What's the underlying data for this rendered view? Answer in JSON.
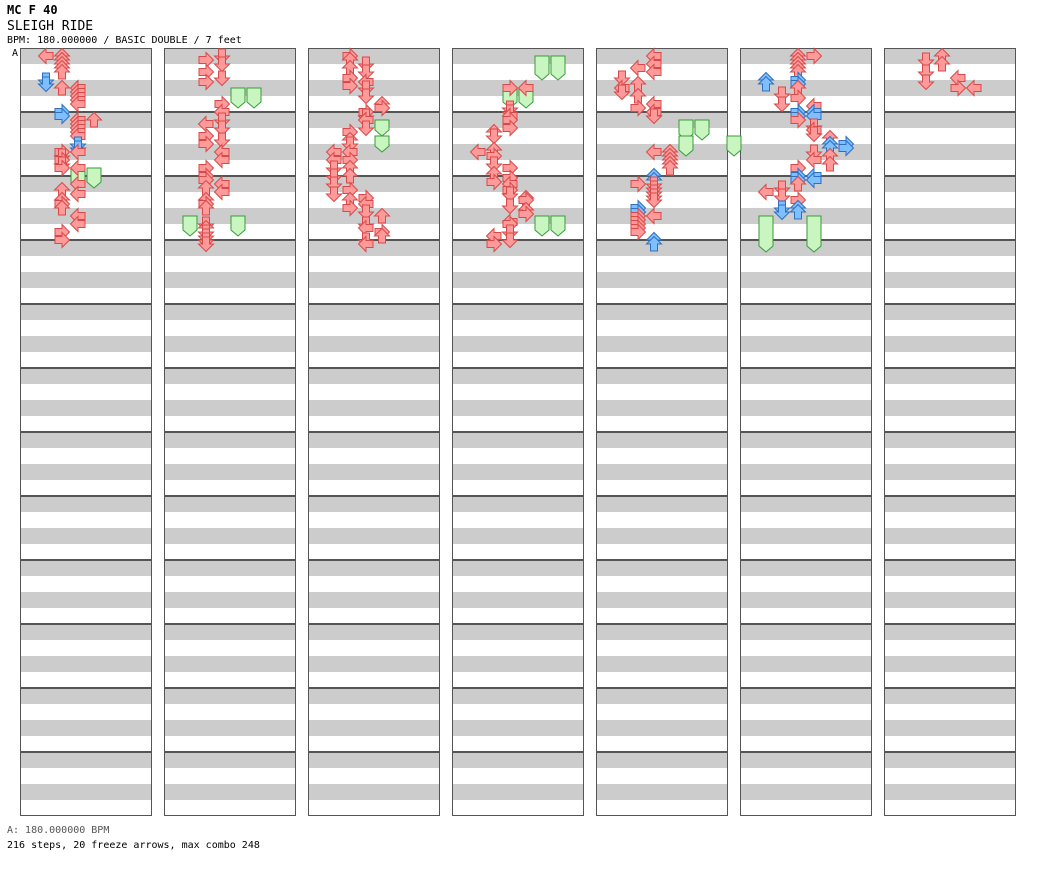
{
  "header": {
    "difficulty_line": "MC F 40",
    "song_title": "SLEIGH RIDE",
    "info_line": "BPM: 180.000000 / BASIC DOUBLE / 7 feet",
    "bpm_marker": "A"
  },
  "footer": {
    "bpm_note": "A: 180.000000 BPM",
    "stats": "216 steps, 20 freeze arrows, max combo 248"
  },
  "chart_data": {
    "type": "step-chart",
    "columns": 7,
    "measures_per_column": 12,
    "lanes": [
      "L",
      "D",
      "U",
      "R",
      "L",
      "D",
      "U",
      "R"
    ],
    "colors": {
      "normal": "#ff9a9a",
      "normal_stroke": "#d84a4a",
      "eighth": "#7dbfff",
      "eighth_stroke": "#2f6fc0",
      "freeze": "#c8f5c0",
      "freeze_stroke": "#3a9a3a",
      "stripe": "#cccccc"
    },
    "notes": [
      [
        0,
        0,
        0,
        "L"
      ],
      [
        0,
        0,
        1,
        "U"
      ],
      [
        0,
        0.25,
        1,
        "U"
      ],
      [
        0,
        0.5,
        1,
        "U"
      ],
      [
        0,
        0.75,
        1,
        "U"
      ],
      [
        0,
        1,
        1,
        "U"
      ],
      [
        0,
        1.5,
        0,
        "D",
        "b"
      ],
      [
        0,
        1.75,
        0,
        "D",
        "b"
      ],
      [
        0,
        2,
        1,
        "U"
      ],
      [
        0,
        2,
        2,
        "L"
      ],
      [
        0,
        2.25,
        2,
        "L"
      ],
      [
        0,
        2.5,
        2,
        "L"
      ],
      [
        0,
        2.75,
        2,
        "L"
      ],
      [
        0,
        3,
        2,
        "L"
      ],
      [
        0,
        3.5,
        1,
        "R",
        "b"
      ],
      [
        0,
        3.75,
        1,
        "R",
        "b"
      ],
      [
        0,
        4,
        2,
        "L"
      ],
      [
        0,
        4,
        3,
        "U"
      ],
      [
        0,
        4.25,
        2,
        "L"
      ],
      [
        0,
        4.5,
        2,
        "L"
      ],
      [
        0,
        4.75,
        2,
        "L"
      ],
      [
        0,
        5,
        2,
        "L"
      ],
      [
        0,
        5.5,
        2,
        "D",
        "b"
      ],
      [
        0,
        5.75,
        2,
        "D",
        "b"
      ],
      [
        0,
        6,
        1,
        "R"
      ],
      [
        0,
        6,
        2,
        "L"
      ],
      [
        0,
        6.25,
        1,
        "D"
      ],
      [
        0,
        6.5,
        1,
        "R"
      ],
      [
        0,
        6.75,
        1,
        "D"
      ],
      [
        0,
        7,
        1,
        "R"
      ],
      [
        0,
        7,
        2,
        "L"
      ],
      [
        0,
        8,
        2,
        "L"
      ],
      [
        0,
        8.375,
        1,
        "U"
      ],
      [
        0,
        8.625,
        2,
        "L"
      ],
      [
        0,
        9,
        1,
        "U"
      ],
      [
        0,
        9.25,
        1,
        "R"
      ],
      [
        0,
        9.5,
        1,
        "U"
      ],
      [
        0,
        10,
        2,
        "L"
      ],
      [
        0,
        10.5,
        2,
        "L"
      ],
      [
        0,
        11,
        1,
        "R"
      ],
      [
        0,
        11.5,
        1,
        "R"
      ],
      [
        1,
        0,
        2,
        "D"
      ],
      [
        1,
        0.25,
        1,
        "R"
      ],
      [
        1,
        0.5,
        2,
        "D"
      ],
      [
        1,
        1,
        1,
        "R"
      ],
      [
        1,
        1.375,
        2,
        "D"
      ],
      [
        1,
        1.625,
        1,
        "R"
      ],
      [
        1,
        3,
        2,
        "R"
      ],
      [
        1,
        3.5,
        2,
        "L"
      ],
      [
        1,
        4,
        2,
        "D"
      ],
      [
        1,
        4.25,
        1,
        "L"
      ],
      [
        1,
        4.5,
        2,
        "D"
      ],
      [
        1,
        5,
        1,
        "R"
      ],
      [
        1,
        5.25,
        2,
        "D"
      ],
      [
        1,
        5.5,
        1,
        "R"
      ],
      [
        1,
        6,
        2,
        "L"
      ],
      [
        1,
        6.5,
        2,
        "L"
      ],
      [
        1,
        7,
        1,
        "R"
      ],
      [
        1,
        7.5,
        1,
        "R"
      ],
      [
        1,
        7.75,
        1,
        "R"
      ],
      [
        1,
        8,
        2,
        "L"
      ],
      [
        1,
        8.25,
        1,
        "U"
      ],
      [
        1,
        8.5,
        2,
        "L"
      ],
      [
        1,
        9,
        1,
        "U"
      ],
      [
        1,
        9.25,
        1,
        "R"
      ],
      [
        1,
        9.5,
        1,
        "U"
      ],
      [
        1,
        10.5,
        1,
        "D"
      ],
      [
        1,
        10.75,
        1,
        "U"
      ],
      [
        1,
        11,
        1,
        "D"
      ],
      [
        1,
        11.25,
        1,
        "D"
      ],
      [
        1,
        11.5,
        1,
        "D"
      ],
      [
        1,
        11.75,
        1,
        "D"
      ],
      [
        2,
        0,
        1,
        "R"
      ],
      [
        2,
        0.25,
        1,
        "U"
      ],
      [
        2,
        0.5,
        2,
        "D"
      ],
      [
        2,
        0.75,
        1,
        "U"
      ],
      [
        2,
        1,
        2,
        "D"
      ],
      [
        2,
        1.375,
        1,
        "R"
      ],
      [
        2,
        1.625,
        2,
        "L"
      ],
      [
        2,
        1.875,
        1,
        "R"
      ],
      [
        2,
        2,
        2,
        "D"
      ],
      [
        2,
        2.5,
        2,
        "D"
      ],
      [
        2,
        3,
        3,
        "U"
      ],
      [
        2,
        3.25,
        3,
        "R"
      ],
      [
        2,
        3.5,
        2,
        "R"
      ],
      [
        2,
        3.75,
        2,
        "D"
      ],
      [
        2,
        4,
        2,
        "L"
      ],
      [
        2,
        4.5,
        2,
        "D"
      ],
      [
        2,
        4.75,
        1,
        "R"
      ],
      [
        2,
        5.25,
        1,
        "U"
      ],
      [
        2,
        5.5,
        1,
        "D"
      ],
      [
        2,
        6,
        0,
        "L"
      ],
      [
        2,
        6,
        1,
        "L"
      ],
      [
        2,
        6.5,
        0,
        "L"
      ],
      [
        2,
        6.5,
        1,
        "R"
      ],
      [
        2,
        7,
        0,
        "D"
      ],
      [
        2,
        7,
        1,
        "U"
      ],
      [
        2,
        7.5,
        0,
        "D"
      ],
      [
        2,
        7.5,
        1,
        "U"
      ],
      [
        2,
        8,
        0,
        "D"
      ],
      [
        2,
        8.375,
        1,
        "R"
      ],
      [
        2,
        8.625,
        0,
        "D"
      ],
      [
        2,
        8.875,
        2,
        "R"
      ],
      [
        2,
        9,
        1,
        "U"
      ],
      [
        2,
        9.25,
        2,
        "L"
      ],
      [
        2,
        9.5,
        1,
        "R"
      ],
      [
        2,
        9.75,
        2,
        "D"
      ],
      [
        2,
        10,
        3,
        "U"
      ],
      [
        2,
        10.5,
        2,
        "D"
      ],
      [
        2,
        10.75,
        2,
        "L"
      ],
      [
        2,
        11,
        3,
        "R"
      ],
      [
        2,
        11.25,
        3,
        "U"
      ],
      [
        2,
        11.5,
        2,
        "D"
      ],
      [
        2,
        11.75,
        2,
        "L"
      ],
      [
        3,
        2,
        2,
        "R"
      ],
      [
        3,
        2,
        3,
        "L"
      ],
      [
        3,
        3.25,
        2,
        "D"
      ],
      [
        3,
        3.5,
        2,
        "D"
      ],
      [
        3,
        3.75,
        2,
        "L"
      ],
      [
        3,
        4,
        2,
        "R"
      ],
      [
        3,
        4.5,
        2,
        "R"
      ],
      [
        3,
        4.75,
        1,
        "U"
      ],
      [
        3,
        5,
        1,
        "D"
      ],
      [
        3,
        5.875,
        1,
        "U"
      ],
      [
        3,
        6,
        0,
        "L"
      ],
      [
        3,
        6.25,
        1,
        "R"
      ],
      [
        3,
        6.75,
        1,
        "D"
      ],
      [
        3,
        7,
        2,
        "R"
      ],
      [
        3,
        7.375,
        1,
        "U"
      ],
      [
        3,
        7.625,
        2,
        "R"
      ],
      [
        3,
        7.875,
        1,
        "R"
      ],
      [
        3,
        8,
        2,
        "L"
      ],
      [
        3,
        8.375,
        2,
        "R"
      ],
      [
        3,
        8.625,
        2,
        "D"
      ],
      [
        3,
        8.875,
        3,
        "U"
      ],
      [
        3,
        9,
        3,
        "R"
      ],
      [
        3,
        9.375,
        2,
        "D"
      ],
      [
        3,
        9.625,
        3,
        "U"
      ],
      [
        3,
        9.875,
        3,
        "R"
      ],
      [
        3,
        10.375,
        2,
        "L"
      ],
      [
        3,
        10.5,
        2,
        "R"
      ],
      [
        3,
        11,
        2,
        "D"
      ],
      [
        3,
        11.25,
        1,
        "L"
      ],
      [
        3,
        11.5,
        2,
        "D"
      ],
      [
        3,
        11.75,
        1,
        "R"
      ],
      [
        4,
        0,
        2,
        "L"
      ],
      [
        4,
        0.5,
        2,
        "L"
      ],
      [
        4,
        0.75,
        1,
        "L"
      ],
      [
        4,
        1,
        2,
        "L"
      ],
      [
        4,
        1.375,
        0,
        "D"
      ],
      [
        4,
        1.75,
        1,
        "U"
      ],
      [
        4,
        2,
        0,
        "L"
      ],
      [
        4,
        2.25,
        0,
        "D"
      ],
      [
        4,
        2.5,
        1,
        "U"
      ],
      [
        4,
        3,
        2,
        "L"
      ],
      [
        4,
        3.25,
        1,
        "R"
      ],
      [
        4,
        3.5,
        2,
        "L"
      ],
      [
        4,
        3.75,
        2,
        "D"
      ],
      [
        4,
        6,
        2,
        "L"
      ],
      [
        4,
        6,
        3,
        "U"
      ],
      [
        4,
        6.25,
        3,
        "U"
      ],
      [
        4,
        6.5,
        3,
        "U"
      ],
      [
        4,
        6.75,
        3,
        "U"
      ],
      [
        4,
        7,
        3,
        "U"
      ],
      [
        4,
        7.5,
        2,
        "U",
        "b"
      ],
      [
        4,
        7.75,
        2,
        "U",
        "b"
      ],
      [
        4,
        8,
        1,
        "R"
      ],
      [
        4,
        8,
        2,
        "D"
      ],
      [
        4,
        8.25,
        2,
        "D"
      ],
      [
        4,
        8.5,
        2,
        "D"
      ],
      [
        4,
        8.75,
        2,
        "D"
      ],
      [
        4,
        9,
        2,
        "D"
      ],
      [
        4,
        9.5,
        1,
        "R",
        "b"
      ],
      [
        4,
        9.75,
        1,
        "R",
        "b"
      ],
      [
        4,
        10,
        1,
        "R"
      ],
      [
        4,
        10,
        2,
        "L"
      ],
      [
        4,
        10.25,
        1,
        "R"
      ],
      [
        4,
        10.5,
        1,
        "R"
      ],
      [
        4,
        10.75,
        1,
        "R"
      ],
      [
        4,
        11,
        1,
        "R"
      ],
      [
        4,
        11.5,
        2,
        "U",
        "b"
      ],
      [
        4,
        11.75,
        2,
        "U",
        "b"
      ],
      [
        5,
        0,
        2,
        "U"
      ],
      [
        5,
        0,
        3,
        "R"
      ],
      [
        5,
        0.25,
        2,
        "U"
      ],
      [
        5,
        0.5,
        2,
        "U"
      ],
      [
        5,
        0.75,
        2,
        "U"
      ],
      [
        5,
        1,
        2,
        "U"
      ],
      [
        5,
        1.5,
        0,
        "U",
        "b"
      ],
      [
        5,
        1.5,
        2,
        "R",
        "b"
      ],
      [
        5,
        1.75,
        0,
        "U",
        "b"
      ],
      [
        5,
        1.75,
        2,
        "R",
        "b"
      ],
      [
        5,
        2,
        2,
        "U"
      ],
      [
        5,
        2.375,
        1,
        "D"
      ],
      [
        5,
        2.625,
        2,
        "R"
      ],
      [
        5,
        3,
        1,
        "D"
      ],
      [
        5,
        3.125,
        3,
        "L"
      ],
      [
        5,
        3.5,
        2,
        "R",
        "b"
      ],
      [
        5,
        3.5,
        3,
        "L",
        "b"
      ],
      [
        5,
        3.75,
        2,
        "R",
        "b"
      ],
      [
        5,
        3.75,
        3,
        "L",
        "b"
      ],
      [
        5,
        4,
        2,
        "R"
      ],
      [
        5,
        4.375,
        3,
        "D"
      ],
      [
        5,
        4.625,
        3,
        "L"
      ],
      [
        5,
        4.875,
        3,
        "D"
      ],
      [
        5,
        5.125,
        4,
        "U"
      ],
      [
        5,
        5.5,
        4,
        "U",
        "b"
      ],
      [
        5,
        5.5,
        5,
        "R",
        "b"
      ],
      [
        5,
        5.75,
        4,
        "U",
        "b"
      ],
      [
        5,
        5.75,
        5,
        "R",
        "b"
      ],
      [
        5,
        6,
        3,
        "D"
      ],
      [
        5,
        6.25,
        4,
        "U"
      ],
      [
        5,
        6.5,
        3,
        "L"
      ],
      [
        5,
        6.75,
        4,
        "U"
      ],
      [
        5,
        7,
        2,
        "R"
      ],
      [
        5,
        7.5,
        2,
        "R",
        "b"
      ],
      [
        5,
        7.5,
        3,
        "L",
        "b"
      ],
      [
        5,
        7.75,
        2,
        "R",
        "b"
      ],
      [
        5,
        7.75,
        3,
        "L",
        "b"
      ],
      [
        5,
        8,
        2,
        "U"
      ],
      [
        5,
        8.25,
        1,
        "D"
      ],
      [
        5,
        8.5,
        0,
        "L"
      ],
      [
        5,
        8.75,
        1,
        "D"
      ],
      [
        5,
        9,
        2,
        "R"
      ],
      [
        5,
        9.5,
        1,
        "D",
        "b"
      ],
      [
        5,
        9.5,
        2,
        "U",
        "b"
      ],
      [
        5,
        9.75,
        1,
        "D",
        "b"
      ],
      [
        5,
        9.75,
        2,
        "U",
        "b"
      ],
      [
        6,
        0,
        2,
        "U"
      ],
      [
        6,
        0.25,
        1,
        "D"
      ],
      [
        6,
        0.5,
        2,
        "U"
      ],
      [
        6,
        1,
        1,
        "D"
      ],
      [
        6,
        1.375,
        3,
        "L"
      ],
      [
        6,
        1.625,
        1,
        "D"
      ],
      [
        6,
        2,
        3,
        "R"
      ],
      [
        6,
        2,
        4,
        "L"
      ]
    ],
    "freezes": [
      [
        0,
        7,
        7.875,
        2
      ],
      [
        0,
        7,
        7.875,
        3
      ],
      [
        1,
        2,
        2.875,
        3
      ],
      [
        1,
        2,
        2.875,
        4
      ],
      [
        1,
        10,
        10.875,
        0
      ],
      [
        1,
        10,
        10.875,
        3
      ],
      [
        2,
        4,
        4.625,
        3
      ],
      [
        2,
        5,
        5.625,
        3
      ],
      [
        3,
        0,
        1.125,
        4
      ],
      [
        3,
        0,
        1.125,
        5
      ],
      [
        3,
        2,
        2.875,
        2
      ],
      [
        3,
        2,
        2.875,
        3
      ],
      [
        3,
        10,
        10.875,
        4
      ],
      [
        3,
        10,
        10.875,
        5
      ],
      [
        4,
        4,
        4.875,
        4
      ],
      [
        4,
        4,
        4.875,
        5
      ],
      [
        4,
        5,
        5.875,
        4
      ],
      [
        4,
        5,
        5.875,
        7
      ],
      [
        5,
        10,
        11.875,
        0
      ],
      [
        5,
        10,
        11.875,
        3
      ]
    ]
  }
}
